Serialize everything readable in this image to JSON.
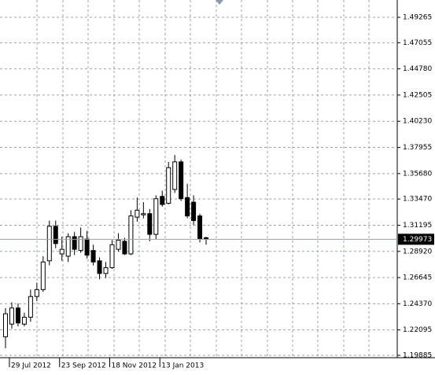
{
  "chart_data": {
    "type": "candlestick",
    "categories": [
      null,
      "29 Jul 2012",
      null,
      null,
      null,
      null,
      null,
      null,
      null,
      "23 Sep 2012",
      null,
      null,
      null,
      null,
      null,
      null,
      null,
      "18 Nov 2012",
      null,
      null,
      null,
      null,
      null,
      null,
      null,
      "13 Jan 2013",
      null,
      null,
      null,
      null,
      null,
      null,
      null
    ],
    "open": [
      1.215,
      1.226,
      1.24,
      1.226,
      1.232,
      1.25,
      1.256,
      1.281,
      1.311,
      1.287,
      1.285,
      1.302,
      1.29,
      1.3,
      1.29,
      1.281,
      1.27,
      1.275,
      1.291,
      1.298,
      1.287,
      1.319,
      1.321,
      1.322,
      1.304,
      1.337,
      1.331,
      1.343,
      1.367,
      1.336,
      1.332,
      1.32,
      1.301
    ],
    "high": [
      1.24,
      1.245,
      1.244,
      1.236,
      1.256,
      1.262,
      1.285,
      1.316,
      1.316,
      1.302,
      1.305,
      1.306,
      1.31,
      1.307,
      1.295,
      1.284,
      1.28,
      1.299,
      1.305,
      1.301,
      1.325,
      1.336,
      1.332,
      1.326,
      1.338,
      1.342,
      1.367,
      1.373,
      1.369,
      1.348,
      1.338,
      1.322,
      1.302
    ],
    "low": [
      1.205,
      1.222,
      1.224,
      1.224,
      1.228,
      1.246,
      1.254,
      1.277,
      1.292,
      1.281,
      1.28,
      1.286,
      1.288,
      1.283,
      1.277,
      1.265,
      1.266,
      1.274,
      1.289,
      1.286,
      1.286,
      1.315,
      1.318,
      1.298,
      1.3,
      1.328,
      1.33,
      1.34,
      1.333,
      1.318,
      1.312,
      1.297,
      1.295
    ],
    "close": [
      1.235,
      1.24,
      1.227,
      1.232,
      1.25,
      1.256,
      1.28,
      1.311,
      1.296,
      1.291,
      1.302,
      1.291,
      1.302,
      1.286,
      1.28,
      1.27,
      1.275,
      1.295,
      1.299,
      1.287,
      1.32,
      1.325,
      1.322,
      1.304,
      1.335,
      1.33,
      1.362,
      1.367,
      1.335,
      1.32,
      1.316,
      1.3,
      1.29973
    ],
    "last_price": 1.29973,
    "ylim": [
      1.1968,
      1.50768
    ],
    "yticks": [
      1.49265,
      1.47055,
      {
        "value": 1.4478,
        "label": "1.44780"
      },
      1.42505,
      {
        "value": 1.4023,
        "label": "1.40230"
      },
      1.37955,
      {
        "value": 1.3568,
        "label": "1.35680"
      },
      {
        "value": 1.3347,
        "label": "1.33470"
      },
      1.31195,
      {
        "value": 1.2892,
        "label": "1.28920"
      },
      1.26645,
      {
        "value": 1.2437,
        "label": "1.24370"
      },
      1.22095,
      1.19885
    ],
    "grid": true
  }
}
